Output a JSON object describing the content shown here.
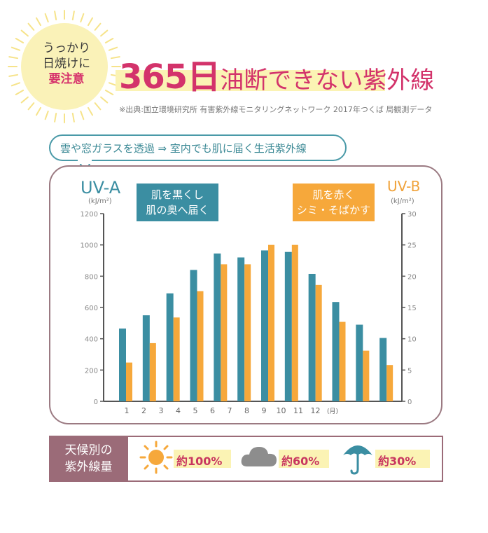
{
  "badge": {
    "line1": "うっかり",
    "line2": "日焼けに",
    "line3": "要注意"
  },
  "title": {
    "number": "365日",
    "rest": "油断できない紫外線"
  },
  "source": "※出典:国立環境研究所 有害紫外線モニタリングネットワーク 2017年つくば 局観測データ",
  "bubble": "雲や窓ガラスを透過 ⇒ 室内でも肌に届く生活紫外線",
  "uva": {
    "label": "UV-A",
    "unit": "(kJ/m²)",
    "desc_line1": "肌を黒くし",
    "desc_line2": "肌の奥へ届く",
    "color": "#3b8ea2"
  },
  "uvb": {
    "label": "UV-B",
    "unit": "(kJ/m²)",
    "desc_line1": "肌を赤く",
    "desc_line2": "シミ・そばかす",
    "color": "#f6a83b"
  },
  "chart_data": {
    "type": "bar",
    "categories": [
      "1",
      "2",
      "3",
      "4",
      "5",
      "6",
      "7",
      "8",
      "9",
      "10",
      "11",
      "12 (月)"
    ],
    "series": [
      {
        "name": "UV-A",
        "axis": "left",
        "values": [
          465,
          550,
          690,
          840,
          945,
          920,
          965,
          955,
          815,
          635,
          490,
          405
        ]
      },
      {
        "name": "UV-B",
        "axis": "right",
        "values": [
          6.2,
          9.3,
          13.4,
          17.6,
          21.9,
          21.9,
          25,
          25,
          18.6,
          12.7,
          8.1,
          5.8
        ]
      }
    ],
    "x_tick_labels": [
      "1",
      "2",
      "3",
      "4",
      "5",
      "6",
      "7",
      "8",
      "9",
      "10",
      "11",
      "12",
      "(月)"
    ],
    "y_left": {
      "min": 0,
      "max": 1200,
      "ticks": [
        0,
        200,
        400,
        600,
        800,
        1000,
        1200
      ]
    },
    "y_right": {
      "min": 0,
      "max": 30,
      "ticks": [
        0,
        5,
        10,
        15,
        20,
        25,
        30
      ]
    }
  },
  "weather": {
    "label_line1": "天候別の",
    "label_line2": "紫外線量",
    "items": [
      {
        "icon": "sun-icon",
        "text": "約100%"
      },
      {
        "icon": "cloud-icon",
        "text": "約60%"
      },
      {
        "icon": "umbrella-icon",
        "text": "約30%"
      }
    ]
  }
}
